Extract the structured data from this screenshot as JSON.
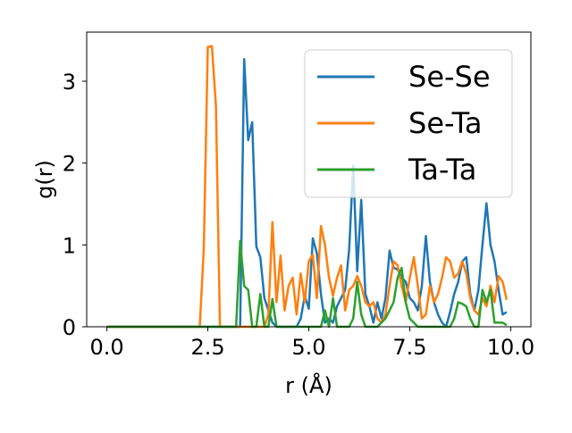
{
  "chart_data": {
    "type": "line",
    "title": "",
    "xlabel": "r (Å)",
    "ylabel": "g(r)",
    "xlim": [
      -0.5,
      10.5
    ],
    "ylim": [
      0,
      3.6
    ],
    "xticks": [
      0.0,
      2.5,
      5.0,
      7.5,
      10.0
    ],
    "xtick_labels": [
      "0.0",
      "2.5",
      "5.0",
      "7.5",
      "10.0"
    ],
    "yticks": [
      0,
      1,
      2,
      3
    ],
    "ytick_labels": [
      "0",
      "1",
      "2",
      "3"
    ],
    "grid": false,
    "legend_position": "upper-right",
    "series": [
      {
        "name": "Se-Se",
        "color": "#1f77b4",
        "x": [
          0.0,
          3.1,
          3.3,
          3.4,
          3.5,
          3.6,
          3.7,
          3.8,
          3.9,
          4.0,
          4.1,
          4.2,
          4.3,
          4.4,
          4.5,
          4.6,
          4.7,
          4.8,
          4.9,
          5.0,
          5.1,
          5.2,
          5.3,
          5.4,
          5.5,
          5.6,
          5.7,
          5.8,
          5.9,
          6.0,
          6.1,
          6.2,
          6.3,
          6.4,
          6.5,
          6.6,
          6.7,
          6.8,
          6.9,
          7.0,
          7.1,
          7.2,
          7.3,
          7.4,
          7.5,
          7.6,
          7.7,
          7.8,
          7.9,
          8.0,
          8.1,
          8.2,
          8.3,
          8.4,
          8.5,
          8.6,
          8.7,
          8.8,
          8.9,
          9.0,
          9.1,
          9.2,
          9.3,
          9.4,
          9.5,
          9.6,
          9.7,
          9.8,
          9.9
        ],
        "y": [
          0.0,
          0.0,
          0.0,
          3.27,
          2.28,
          2.5,
          0.98,
          0.85,
          0.35,
          0.2,
          0.05,
          0.0,
          0.0,
          0.0,
          0.0,
          0.0,
          0.0,
          0.1,
          0.38,
          0.22,
          1.08,
          0.9,
          0.4,
          0.05,
          0.1,
          0.05,
          0.25,
          0.35,
          0.45,
          0.95,
          1.97,
          0.68,
          1.55,
          0.4,
          0.25,
          0.05,
          0.3,
          0.1,
          0.35,
          0.93,
          0.72,
          0.7,
          0.6,
          0.55,
          0.35,
          0.3,
          0.2,
          0.5,
          1.11,
          0.55,
          0.3,
          0.15,
          0.05,
          0.0,
          0.18,
          0.4,
          0.55,
          0.8,
          0.85,
          0.4,
          0.2,
          0.45,
          1.0,
          1.51,
          1.0,
          0.8,
          0.45,
          0.15,
          0.18
        ]
      },
      {
        "name": "Se-Ta",
        "color": "#ff7f0e",
        "x": [
          0.0,
          2.3,
          2.4,
          2.5,
          2.6,
          2.7,
          2.8,
          2.9,
          3.9,
          4.0,
          4.1,
          4.2,
          4.3,
          4.4,
          4.5,
          4.6,
          4.7,
          4.8,
          4.9,
          5.0,
          5.1,
          5.2,
          5.3,
          5.4,
          5.5,
          5.6,
          5.7,
          5.8,
          5.9,
          6.0,
          6.1,
          6.2,
          6.3,
          6.4,
          6.5,
          6.6,
          6.7,
          6.8,
          6.9,
          7.0,
          7.1,
          7.2,
          7.3,
          7.4,
          7.5,
          7.6,
          7.7,
          7.8,
          7.9,
          8.0,
          8.1,
          8.2,
          8.3,
          8.4,
          8.5,
          8.6,
          8.7,
          8.8,
          8.9,
          9.0,
          9.1,
          9.2,
          9.3,
          9.4,
          9.5,
          9.6,
          9.7,
          9.8,
          9.9
        ],
        "y": [
          0.0,
          0.0,
          0.95,
          3.42,
          3.43,
          2.7,
          0.0,
          0.0,
          0.0,
          0.15,
          1.28,
          0.3,
          0.87,
          0.2,
          0.5,
          0.6,
          0.15,
          0.65,
          0.3,
          0.8,
          0.88,
          0.35,
          1.23,
          1.0,
          0.6,
          0.38,
          0.6,
          0.75,
          0.2,
          0.45,
          0.5,
          0.62,
          0.5,
          0.3,
          0.25,
          0.3,
          0.1,
          0.05,
          0.15,
          0.5,
          0.8,
          0.75,
          0.5,
          0.3,
          0.6,
          0.85,
          0.5,
          0.1,
          0.15,
          0.5,
          0.3,
          0.4,
          0.6,
          0.85,
          0.8,
          0.6,
          0.65,
          0.8,
          0.65,
          0.35,
          0.2,
          0.15,
          0.35,
          0.25,
          0.5,
          0.3,
          0.62,
          0.55,
          0.33
        ]
      },
      {
        "name": "Ta-Ta",
        "color": "#2ca02c",
        "x": [
          0.0,
          3.1,
          3.2,
          3.3,
          3.4,
          3.5,
          3.6,
          3.7,
          3.8,
          3.9,
          4.0,
          4.1,
          4.2,
          4.3,
          4.4,
          4.5,
          4.6,
          4.7,
          4.8,
          4.9,
          5.0,
          5.1,
          5.2,
          5.3,
          5.4,
          5.5,
          5.6,
          5.7,
          5.8,
          5.9,
          6.0,
          6.1,
          6.2,
          6.3,
          6.4,
          6.5,
          6.6,
          6.7,
          6.8,
          6.9,
          7.0,
          7.1,
          7.2,
          7.3,
          7.4,
          7.5,
          7.6,
          7.7,
          7.8,
          7.9,
          8.0,
          8.1,
          8.2,
          8.3,
          8.4,
          8.5,
          8.6,
          8.7,
          8.8,
          8.9,
          9.0,
          9.1,
          9.2,
          9.3,
          9.4,
          9.5,
          9.6,
          9.7,
          9.8,
          9.9
        ],
        "y": [
          0.0,
          0.0,
          0.0,
          1.05,
          0.5,
          0.45,
          0.0,
          0.0,
          0.4,
          0.0,
          0.0,
          0.34,
          0.0,
          0.0,
          0.0,
          0.0,
          0.0,
          0.0,
          0.0,
          0.0,
          0.0,
          0.0,
          0.0,
          0.0,
          0.2,
          0.0,
          0.35,
          0.0,
          0.0,
          0.0,
          0.0,
          0.1,
          0.55,
          0.15,
          0.0,
          0.0,
          0.0,
          0.0,
          0.05,
          0.1,
          0.2,
          0.3,
          0.6,
          0.72,
          0.3,
          0.1,
          0.05,
          0.0,
          0.0,
          0.0,
          0.0,
          0.0,
          0.0,
          0.0,
          0.0,
          0.0,
          0.1,
          0.3,
          0.28,
          0.25,
          0.1,
          0.0,
          0.0,
          0.45,
          0.3,
          0.45,
          0.05,
          0.05,
          0.05,
          0.02
        ]
      }
    ]
  }
}
